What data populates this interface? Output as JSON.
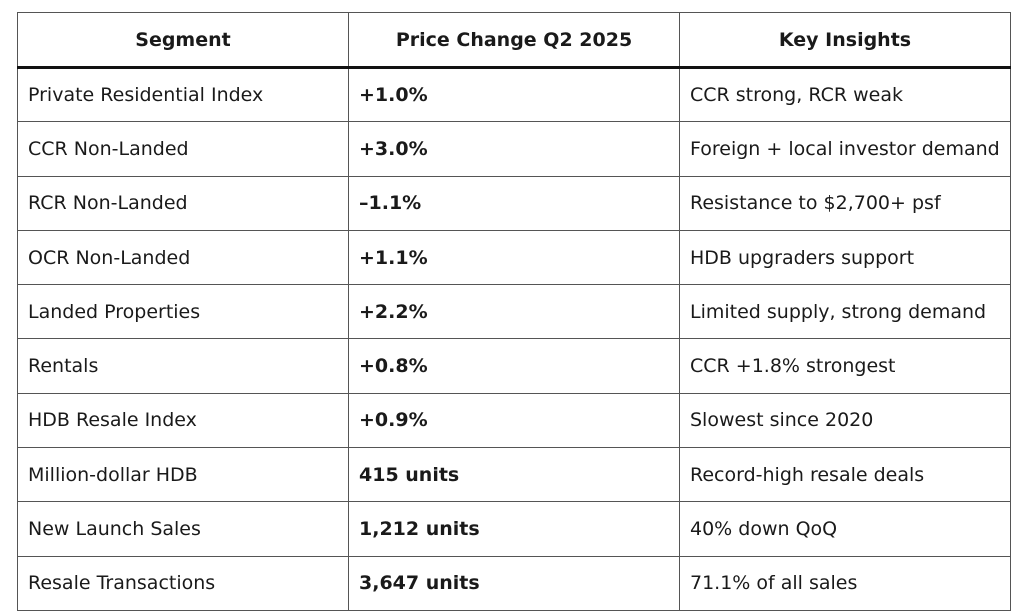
{
  "table": {
    "headers": [
      "Segment",
      "Price Change Q2 2025",
      "Key Insights"
    ],
    "rows": [
      {
        "segment": "Private Residential Index",
        "change": "+1.0%",
        "insight": "CCR strong, RCR weak"
      },
      {
        "segment": "CCR Non-Landed",
        "change": "+3.0%",
        "insight": "Foreign + local investor demand"
      },
      {
        "segment": "RCR Non-Landed",
        "change": "–1.1%",
        "insight": "Resistance to $2,700+ psf"
      },
      {
        "segment": "OCR Non-Landed",
        "change": "+1.1%",
        "insight": "HDB upgraders support"
      },
      {
        "segment": "Landed Properties",
        "change": "+2.2%",
        "insight": "Limited supply, strong demand"
      },
      {
        "segment": "Rentals",
        "change": "+0.8%",
        "insight": "CCR +1.8% strongest"
      },
      {
        "segment": "HDB Resale Index",
        "change": "+0.9%",
        "insight": "Slowest since 2020"
      },
      {
        "segment": "Million-dollar HDB",
        "change": "415 units",
        "insight": "Record-high resale deals"
      },
      {
        "segment": "New Launch Sales",
        "change": "1,212 units",
        "insight": "40% down QoQ"
      },
      {
        "segment": "Resale Transactions",
        "change": "3,647 units",
        "insight": "71.1% of all sales"
      }
    ]
  }
}
